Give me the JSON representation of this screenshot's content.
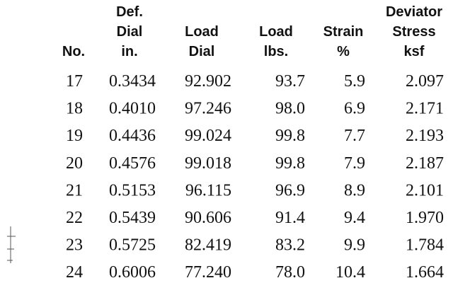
{
  "table": {
    "columns": [
      [
        "No."
      ],
      [
        "Def.",
        "Dial",
        "in."
      ],
      [
        "Load",
        "Dial"
      ],
      [
        "Load",
        "lbs."
      ],
      [
        "Strain",
        "%"
      ],
      [
        "Deviator",
        "Stress",
        "ksf"
      ]
    ],
    "rows": [
      [
        "17",
        "0.3434",
        "92.902",
        "93.7",
        "5.9",
        "2.097"
      ],
      [
        "18",
        "0.4010",
        "97.246",
        "98.0",
        "6.9",
        "2.171"
      ],
      [
        "19",
        "0.4436",
        "99.024",
        "99.8",
        "7.7",
        "2.193"
      ],
      [
        "20",
        "0.4576",
        "99.018",
        "99.8",
        "7.9",
        "2.187"
      ],
      [
        "21",
        "0.5153",
        "96.115",
        "96.9",
        "8.9",
        "2.101"
      ],
      [
        "22",
        "0.5439",
        "90.606",
        "91.4",
        "9.4",
        "1.970"
      ],
      [
        "23",
        "0.5725",
        "82.419",
        "83.2",
        "9.9",
        "1.784"
      ],
      [
        "24",
        "0.6006",
        "77.240",
        "78.0",
        "10.4",
        "1.664"
      ]
    ]
  }
}
